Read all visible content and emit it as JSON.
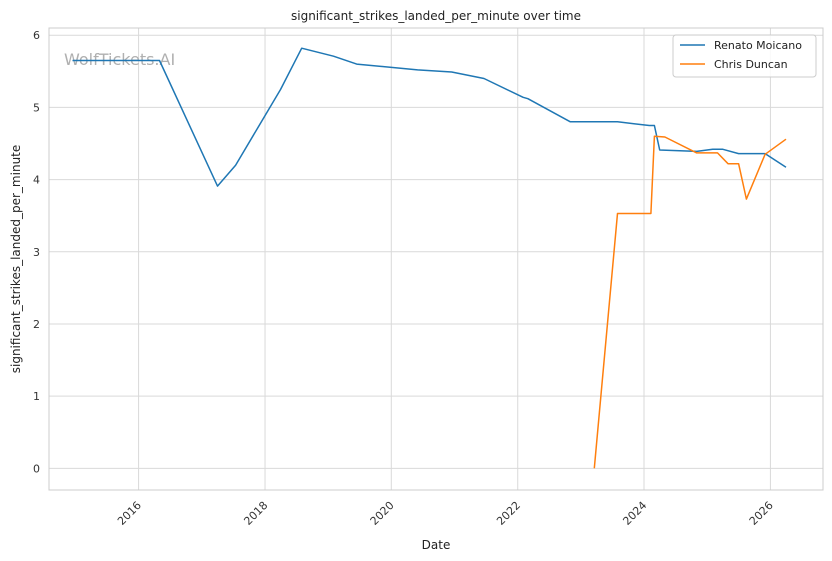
{
  "chart_data": {
    "type": "line",
    "title": "significant_strikes_landed_per_minute over time",
    "xlabel": "Date",
    "ylabel": "significant_strikes_landed_per_minute",
    "watermark": "WolfTickets.AI",
    "x_ticks": [
      "2016",
      "2018",
      "2020",
      "2022",
      "2024",
      "2026"
    ],
    "y_ticks": [
      "0",
      "1",
      "2",
      "3",
      "4",
      "5",
      "6"
    ],
    "xlim": [
      "2014-08-01",
      "2026-11-01"
    ],
    "ylim": [
      -0.3,
      6.1
    ],
    "grid": true,
    "legend_position": "top-right",
    "series": [
      {
        "name": "Renato Moicano",
        "color": "#1f77b4",
        "points": [
          [
            "2014-12-15",
            5.65
          ],
          [
            "2016-05-01",
            5.65
          ],
          [
            "2017-04-01",
            3.91
          ],
          [
            "2017-07-15",
            4.2
          ],
          [
            "2018-04-01",
            5.25
          ],
          [
            "2018-08-01",
            5.82
          ],
          [
            "2019-02-01",
            5.71
          ],
          [
            "2019-06-15",
            5.6
          ],
          [
            "2020-06-01",
            5.52
          ],
          [
            "2020-12-15",
            5.49
          ],
          [
            "2021-06-20",
            5.4
          ],
          [
            "2022-02-01",
            5.14
          ],
          [
            "2022-03-01",
            5.12
          ],
          [
            "2022-11-01",
            4.8
          ],
          [
            "2023-08-01",
            4.8
          ],
          [
            "2024-02-01",
            4.75
          ],
          [
            "2024-03-01",
            4.75
          ],
          [
            "2024-04-01",
            4.41
          ],
          [
            "2024-11-01",
            4.39
          ],
          [
            "2025-02-01",
            4.42
          ],
          [
            "2025-04-01",
            4.42
          ],
          [
            "2025-07-01",
            4.36
          ],
          [
            "2025-12-01",
            4.36
          ],
          [
            "2026-04-01",
            4.17
          ]
        ]
      },
      {
        "name": "Chris Duncan",
        "color": "#ff7f0e",
        "points": [
          [
            "2023-03-20",
            0.0
          ],
          [
            "2023-08-01",
            3.53
          ],
          [
            "2024-02-10",
            3.53
          ],
          [
            "2024-03-01",
            4.6
          ],
          [
            "2024-05-01",
            4.59
          ],
          [
            "2024-11-01",
            4.37
          ],
          [
            "2025-03-01",
            4.37
          ],
          [
            "2025-05-01",
            4.22
          ],
          [
            "2025-07-01",
            4.22
          ],
          [
            "2025-08-15",
            3.73
          ],
          [
            "2025-12-01",
            4.35
          ],
          [
            "2026-04-01",
            4.56
          ]
        ]
      }
    ]
  }
}
